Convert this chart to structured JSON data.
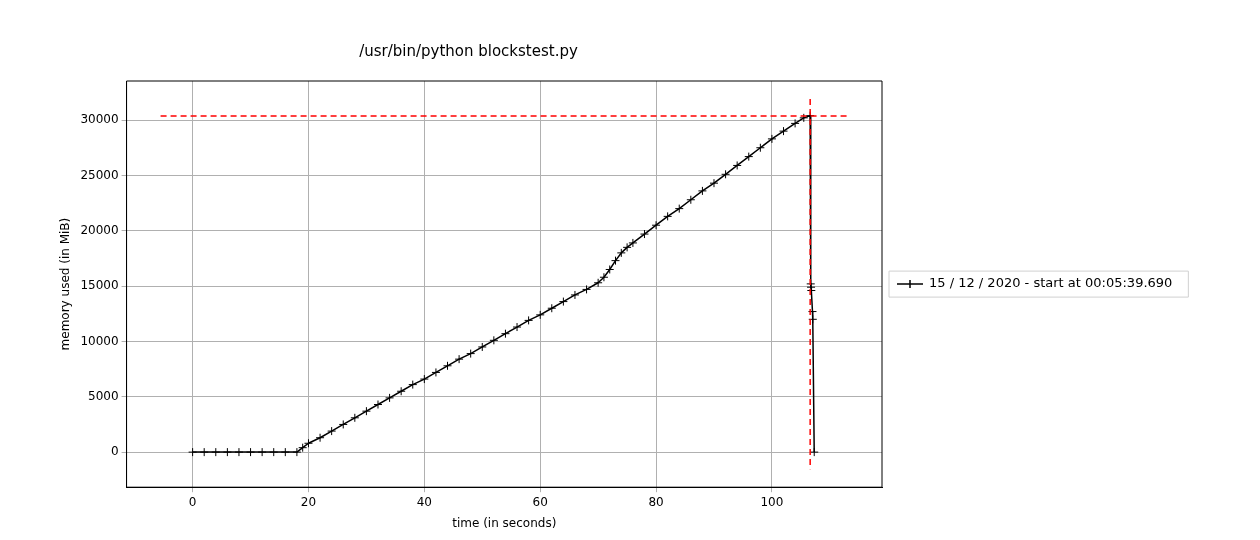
{
  "chart_data": {
    "type": "line",
    "title": "/usr/bin/python blockstest.py",
    "xlabel": "time (in seconds)",
    "ylabel": "memory used (in MiB)",
    "series": [
      {
        "name": "15 / 12 / 2020 - start at 00:05:39.690",
        "color": "#000000",
        "x": [
          0,
          2,
          4,
          6,
          8,
          10,
          12,
          14,
          16,
          18,
          19,
          20,
          22,
          24,
          26,
          28,
          30,
          32,
          34,
          36,
          38,
          40,
          42,
          44,
          46,
          48,
          50,
          52,
          54,
          56,
          58,
          60,
          62,
          64,
          66,
          68,
          70,
          71,
          72,
          73,
          74,
          75,
          76,
          78,
          80,
          82,
          84,
          86,
          88,
          90,
          92,
          94,
          96,
          98,
          100,
          102,
          104,
          105.5,
          106.6,
          106.7,
          106.75,
          106.8,
          107,
          107.05,
          107.3
        ],
        "values": [
          0,
          0,
          0,
          0,
          0,
          0,
          0,
          0,
          0,
          0,
          400,
          800,
          1300,
          1900,
          2500,
          3100,
          3700,
          4300,
          4900,
          5500,
          6100,
          6600,
          7200,
          7800,
          8400,
          8900,
          9500,
          10100,
          10700,
          11300,
          11900,
          12400,
          13000,
          13600,
          14200,
          14700,
          15300,
          15800,
          16500,
          17300,
          18000,
          18500,
          18900,
          19700,
          20500,
          21300,
          22000,
          22800,
          23600,
          24300,
          25100,
          25900,
          26700,
          27500,
          28300,
          29000,
          29700,
          30200,
          30400,
          15200,
          14900,
          14600,
          12700,
          12000,
          0
        ]
      }
    ],
    "xlim": [
      -11.4,
      119
    ],
    "xticks": [
      0,
      20,
      40,
      60,
      80,
      100
    ],
    "ylim": [
      -3170,
      33530
    ],
    "yticks": [
      0,
      5000,
      10000,
      15000,
      20000,
      25000,
      30000
    ],
    "ref_lines": [
      {
        "axis": "y",
        "value": 30360,
        "color": "#ff0000",
        "line_style": "dashed"
      },
      {
        "axis": "x",
        "value": 106.6,
        "color": "#ff0000",
        "line_style": "dashed"
      }
    ],
    "grid": true,
    "legend": "right",
    "marker": "cross",
    "line_style": "solid"
  }
}
